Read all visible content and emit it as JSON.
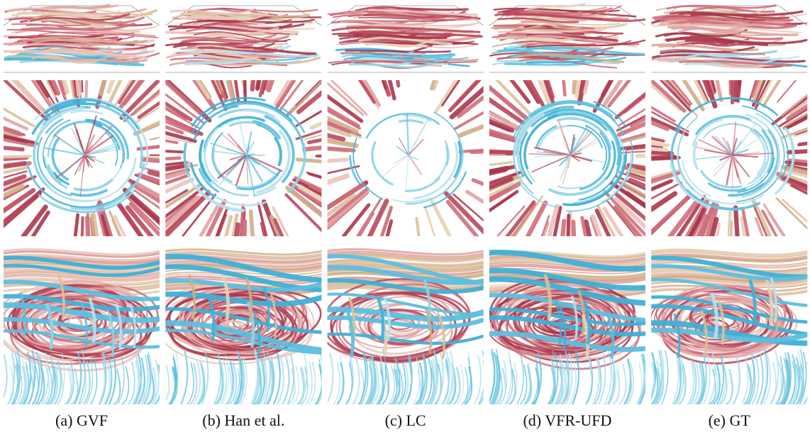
{
  "captions": [
    "(a) GVF",
    "(b) Han et al.",
    "(c) LC",
    "(d) VFR-UFD",
    "(e) GT"
  ]
}
